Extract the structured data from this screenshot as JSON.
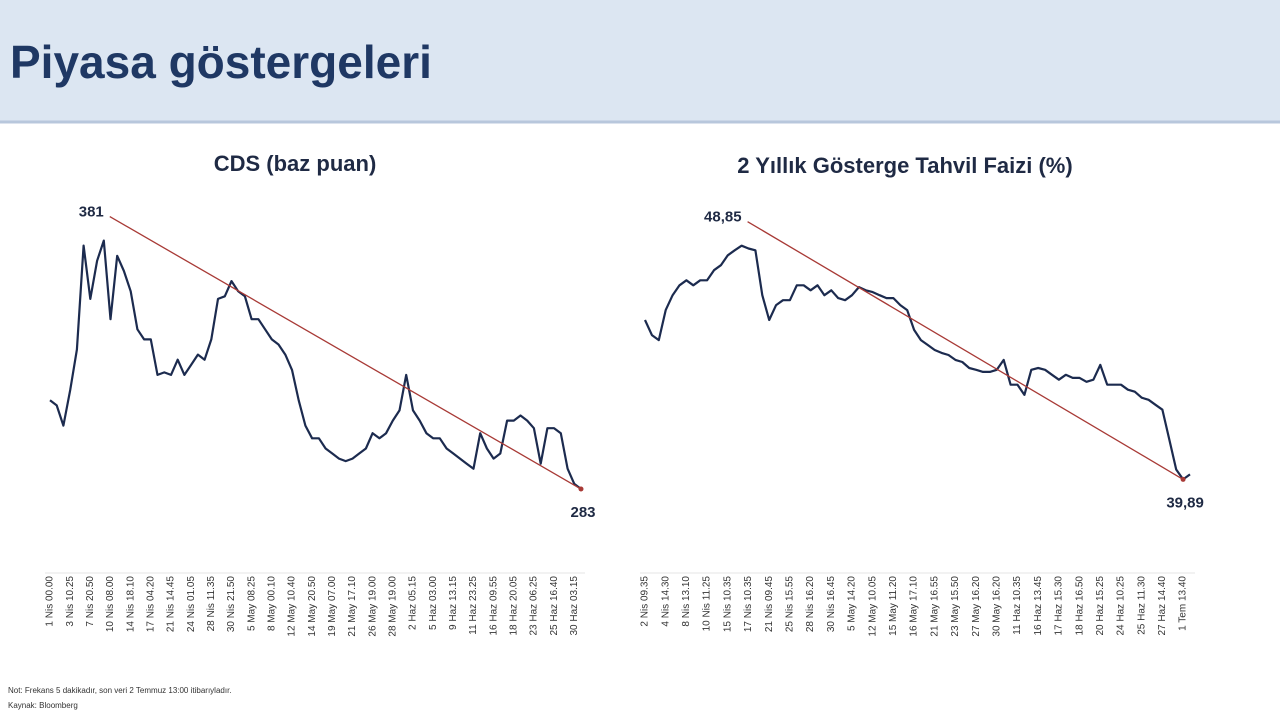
{
  "header": {
    "title": "Piyasa göstergeleri"
  },
  "chart_data": [
    {
      "type": "line",
      "title": "CDS (baz puan)",
      "color": "#1c2b4f",
      "trend_color": "#a83a36",
      "ylim": [
        255,
        397
      ],
      "categories": [
        "1 Nis 00.00",
        null,
        null,
        "3 Nis 10.25",
        null,
        null,
        "7 Nis 20.50",
        null,
        null,
        "10 Nis 08.00",
        null,
        null,
        "14 Nis 18.10",
        null,
        null,
        "17 Nis 04.20",
        null,
        null,
        "21 Nis 14.45",
        null,
        null,
        "24 Nis 01.05",
        null,
        null,
        "28 Nis 11.35",
        null,
        null,
        "30 Nis 21.50",
        null,
        null,
        "5 May 08.25",
        null,
        null,
        "8 May 00.10",
        null,
        null,
        "12 May 10.40",
        null,
        null,
        "14 May 20.50",
        null,
        null,
        "19 May 07.00",
        null,
        null,
        "21 May 17.10",
        null,
        null,
        "26 May 19.00",
        null,
        null,
        "28 May 19.00",
        null,
        null,
        "2 Haz 05.15",
        null,
        null,
        "5 Haz 03.00",
        null,
        null,
        "9 Haz 13.15",
        null,
        null,
        "11 Haz 23.25",
        null,
        null,
        "16 Haz 09.55",
        null,
        null,
        "18 Haz 20.05",
        null,
        null,
        "23 Haz 06.25",
        null,
        null,
        "25 Haz 16.40",
        null,
        null,
        "30 Haz 03.15",
        null
      ],
      "values": [
        318,
        316,
        308,
        322,
        338,
        379,
        358,
        373,
        381,
        350,
        375,
        369,
        361,
        346,
        342,
        342,
        328,
        329,
        328,
        334,
        328,
        332,
        336,
        334,
        342,
        358,
        359,
        365,
        361,
        359,
        350,
        350,
        346,
        342,
        340,
        336,
        330,
        318,
        308,
        303,
        303,
        299,
        297,
        295,
        294,
        295,
        297,
        299,
        305,
        303,
        305,
        310,
        314,
        328,
        314,
        310,
        305,
        303,
        303,
        299,
        297,
        295,
        293,
        291,
        305,
        299,
        295,
        297,
        310,
        310,
        312,
        310,
        307,
        293,
        307,
        307,
        305,
        291,
        285,
        283
      ],
      "trend": {
        "values": [
          381,
          283
        ]
      }
    },
    {
      "type": "line",
      "title": "2 Yıllık Gösterge Tahvil Faizi (%)",
      "color": "#1c2b4f",
      "trend_color": "#a83a36",
      "ylim": [
        36.8,
        50.6
      ],
      "categories": [
        "2 Nis 09.35",
        null,
        null,
        "4 Nis 14.30",
        null,
        null,
        "8 Nis 13.10",
        null,
        null,
        "10 Nis 11.25",
        null,
        null,
        "15 Nis 10.35",
        null,
        null,
        "17 Nis 10.35",
        null,
        null,
        "21 Nis 09.45",
        null,
        null,
        "25 Nis 15.55",
        null,
        null,
        "28 Nis 16.20",
        null,
        null,
        "30 Nis 16.45",
        null,
        null,
        "5 May 14.20",
        null,
        null,
        "12 May 10.05",
        null,
        null,
        "15 May 11.20",
        null,
        null,
        "16 May 17.10",
        null,
        null,
        "21 May 16.55",
        null,
        null,
        "23 May 15.50",
        null,
        null,
        "27 May 16.20",
        null,
        null,
        "30 May 16.20",
        null,
        null,
        "11 Haz 10.35",
        null,
        null,
        "16 Haz 13.45",
        null,
        null,
        "17 Haz 15.30",
        null,
        null,
        "18 Haz 16.50",
        null,
        null,
        "20 Haz 15.25",
        null,
        null,
        "24 Haz 10.25",
        null,
        null,
        "25 Haz 11.30",
        null,
        null,
        "27 Haz 14.40",
        null,
        null,
        "1 Tem 13.40",
        null
      ],
      "values": [
        46.0,
        45.42,
        45.23,
        46.38,
        46.95,
        47.33,
        47.52,
        47.33,
        47.52,
        47.52,
        47.91,
        48.1,
        48.48,
        48.67,
        48.85,
        48.74,
        48.67,
        46.95,
        46.0,
        46.57,
        46.76,
        46.76,
        47.33,
        47.33,
        47.14,
        47.33,
        46.95,
        47.14,
        46.84,
        46.76,
        46.95,
        47.26,
        47.14,
        47.07,
        46.95,
        46.84,
        46.84,
        46.57,
        46.38,
        45.62,
        45.23,
        45.04,
        44.85,
        44.74,
        44.66,
        44.47,
        44.39,
        44.16,
        44.09,
        44.01,
        44.01,
        44.09,
        44.47,
        43.52,
        43.52,
        43.13,
        44.09,
        44.16,
        44.09,
        43.9,
        43.71,
        43.9,
        43.78,
        43.78,
        43.63,
        43.71,
        44.28,
        43.52,
        43.52,
        43.52,
        43.33,
        43.25,
        43.02,
        42.94,
        42.75,
        42.56,
        41.42,
        40.27,
        39.89,
        40.08
      ],
      "trend": {
        "values": [
          48.85,
          39.89
        ],
        "value_labels": [
          "48,85",
          "39,89"
        ]
      }
    }
  ],
  "footnote": {
    "note": "Not: Frekans 5 dakikadır, son veri 2 Temmuz 13:00 itibarıyladır.",
    "source": "Kaynak: Bloomberg"
  }
}
